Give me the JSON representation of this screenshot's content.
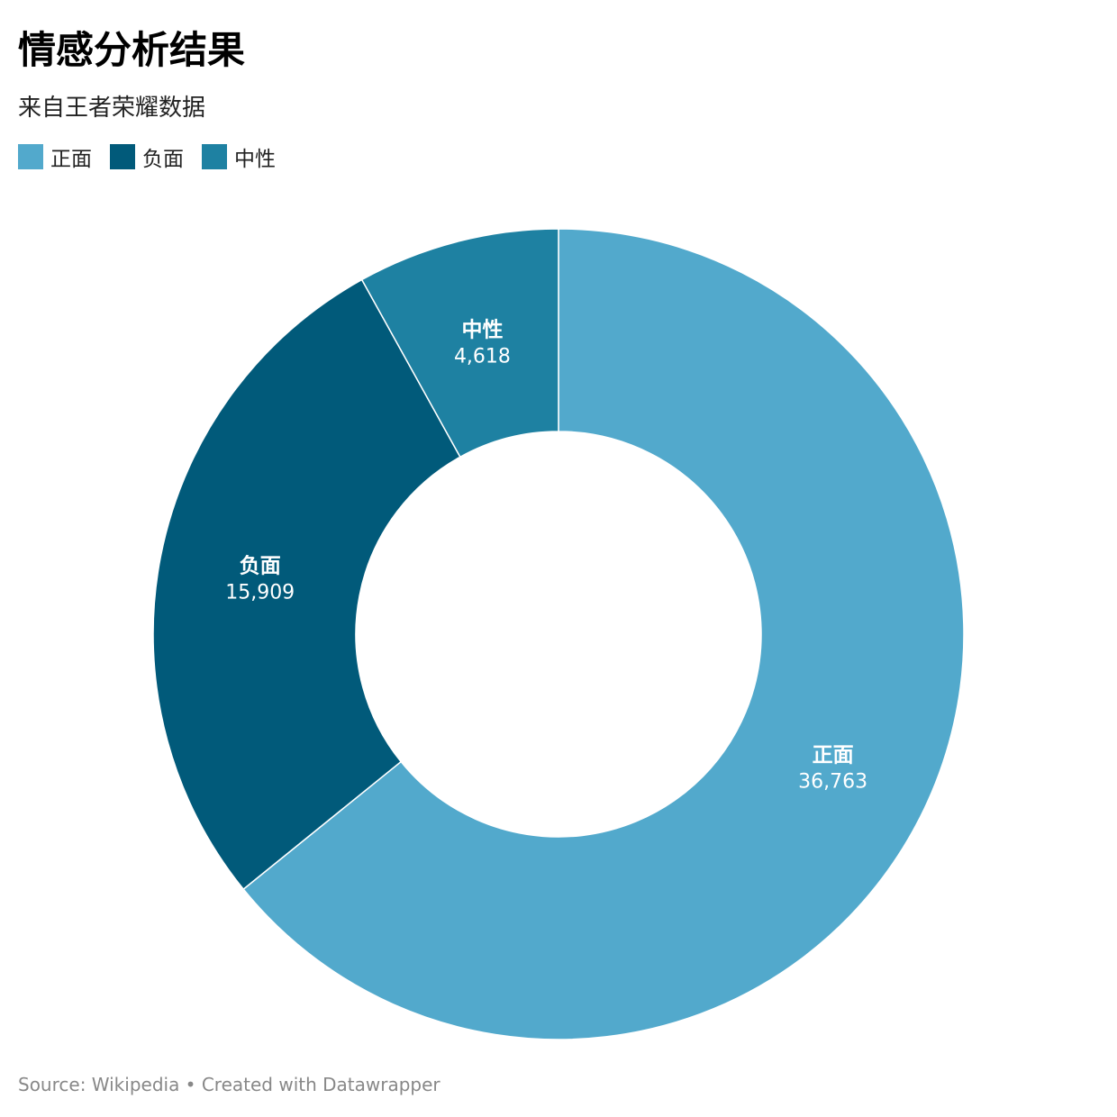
{
  "title": "情感分析结果",
  "subtitle": "来自王者荣耀数据",
  "footer": "Source: Wikipedia • Created with Datawrapper",
  "chart_data": {
    "type": "pie",
    "variant": "donut",
    "title": "情感分析结果",
    "subtitle": "来自王者荣耀数据",
    "legend_position": "top-left",
    "slices": [
      {
        "name": "正面",
        "label": "36,763",
        "value": 36763,
        "color": "#52a9cc"
      },
      {
        "name": "负面",
        "label": "15,909",
        "value": 15909,
        "color": "#015a7a"
      },
      {
        "name": "中性",
        "label": "4,618",
        "value": 4618,
        "color": "#1e81a2"
      }
    ]
  }
}
